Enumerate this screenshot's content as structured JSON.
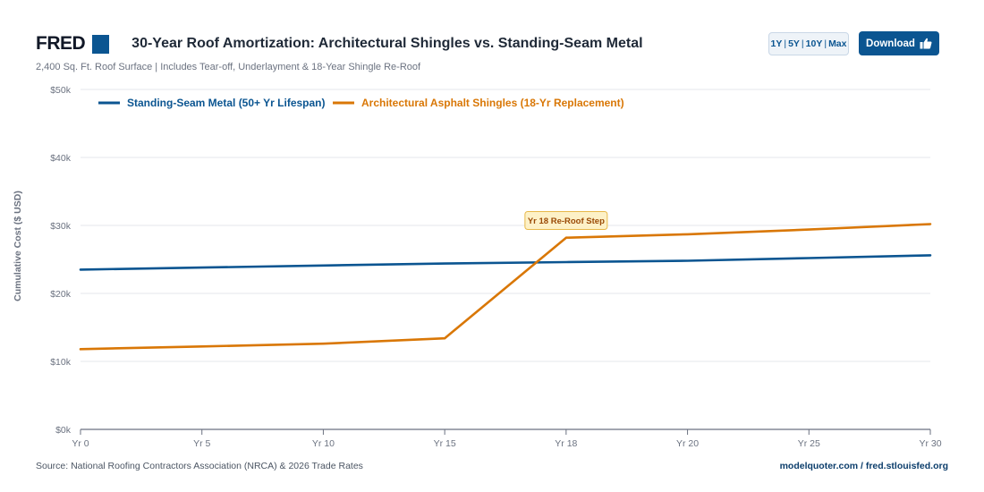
{
  "header": {
    "logo": "FRED",
    "title": "30-Year Roof Amortization: Architectural Shingles vs. Standing-Seam Metal",
    "subtitle": "2,400 Sq. Ft. Roof Surface | Includes Tear-off, Underlayment & 18-Year Shingle Re-Roof"
  },
  "controls": {
    "ranges": [
      "1Y",
      "5Y",
      "10Y",
      "Max"
    ],
    "download_label": "Download",
    "download_icon": "thumbs-up-icon"
  },
  "footer": {
    "source": "Source: National Roofing Contractors Association (NRCA) & 2026 Trade Rates",
    "link": "modelquoter.com / fred.stlouisfed.org"
  },
  "colors": {
    "metal": "#0b5591",
    "shingles": "#d97706",
    "annotation_bg": "#fdf1c7",
    "annotation_border": "#e8b94a",
    "annotation_text": "#9a4a06"
  },
  "chart_data": {
    "type": "line",
    "ylabel": "Cumulative Cost ($ USD)",
    "xlabel": "",
    "x": [
      "Yr 0",
      "Yr 5",
      "Yr 10",
      "Yr 15",
      "Yr 18",
      "Yr 20",
      "Yr 25",
      "Yr 30"
    ],
    "ylim": [
      0,
      50000
    ],
    "yticks": [
      0,
      10000,
      20000,
      30000,
      40000,
      50000
    ],
    "ytick_labels": [
      "$0k",
      "$10k",
      "$20k",
      "$30k",
      "$40k",
      "$50k"
    ],
    "grid": true,
    "legend_position": "top-left",
    "series": [
      {
        "name": "Standing-Seam Metal (50+ Yr Lifespan)",
        "values": [
          23500,
          23800,
          24100,
          24400,
          24600,
          24800,
          25200,
          25600
        ]
      },
      {
        "name": "Architectural Asphalt Shingles (18-Yr Replacement)",
        "values": [
          11800,
          12200,
          12600,
          13400,
          28200,
          28700,
          29400,
          30200
        ]
      }
    ],
    "annotations": [
      {
        "text": "Yr 18 Re-Roof Step",
        "x": "Yr 18",
        "y": 30200
      }
    ]
  }
}
